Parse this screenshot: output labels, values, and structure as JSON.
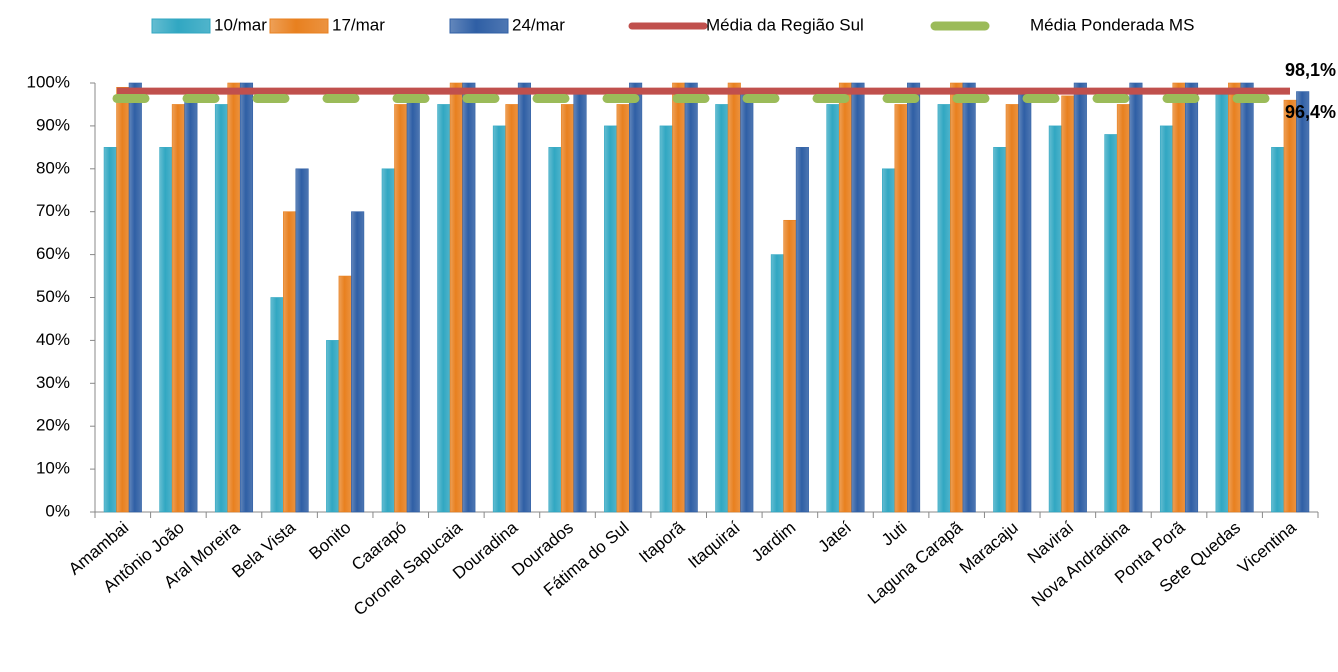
{
  "chart_data": {
    "type": "bar",
    "categories": [
      "Amambai",
      "Antônio João",
      "Aral Moreira",
      "Bela Vista",
      "Bonito",
      "Caarapó",
      "Coronel Sapucaia",
      "Douradina",
      "Dourados",
      "Fátima do Sul",
      "Itaporã",
      "Itaquiraí",
      "Jardim",
      "Jateí",
      "Juti",
      "Laguna Carapã",
      "Maracaju",
      "Naviraí",
      "Nova Andradina",
      "Ponta Porã",
      "Sete Quedas",
      "Vicentina"
    ],
    "series": [
      {
        "name": "10/mar",
        "color": "#31a7c2",
        "values": [
          85,
          85,
          95,
          50,
          40,
          80,
          95,
          90,
          85,
          90,
          90,
          95,
          60,
          95,
          80,
          95,
          85,
          90,
          88,
          90,
          98,
          85
        ]
      },
      {
        "name": "17/mar",
        "color": "#e8801f",
        "values": [
          99,
          95,
          100,
          70,
          55,
          95,
          100,
          95,
          95,
          95,
          100,
          100,
          68,
          100,
          95,
          100,
          95,
          97,
          95,
          100,
          100,
          96
        ]
      },
      {
        "name": "24/mar",
        "color": "#2f5fa5",
        "values": [
          100,
          97,
          100,
          80,
          70,
          97,
          100,
          100,
          98,
          100,
          100,
          98,
          85,
          100,
          100,
          100,
          98,
          100,
          100,
          100,
          100,
          98
        ]
      }
    ],
    "lines": [
      {
        "name": "Média da Região Sul",
        "color": "#c0504d",
        "style": "solid",
        "value": 98.1,
        "value_label": "98,1%"
      },
      {
        "name": "Média Ponderada MS",
        "color": "#9bbb59",
        "style": "dashed",
        "value": 96.4,
        "value_label": "96,4%"
      }
    ],
    "ylim": [
      0,
      100
    ],
    "yticks": [
      {
        "value": 0,
        "label": "0%"
      },
      {
        "value": 10,
        "label": "10%"
      },
      {
        "value": 20,
        "label": "20%"
      },
      {
        "value": 30,
        "label": "30%"
      },
      {
        "value": 40,
        "label": "40%"
      },
      {
        "value": 50,
        "label": "50%"
      },
      {
        "value": 60,
        "label": "60%"
      },
      {
        "value": 70,
        "label": "70%"
      },
      {
        "value": 80,
        "label": "80%"
      },
      {
        "value": 90,
        "label": "90%"
      },
      {
        "value": 100,
        "label": "100%"
      }
    ]
  }
}
